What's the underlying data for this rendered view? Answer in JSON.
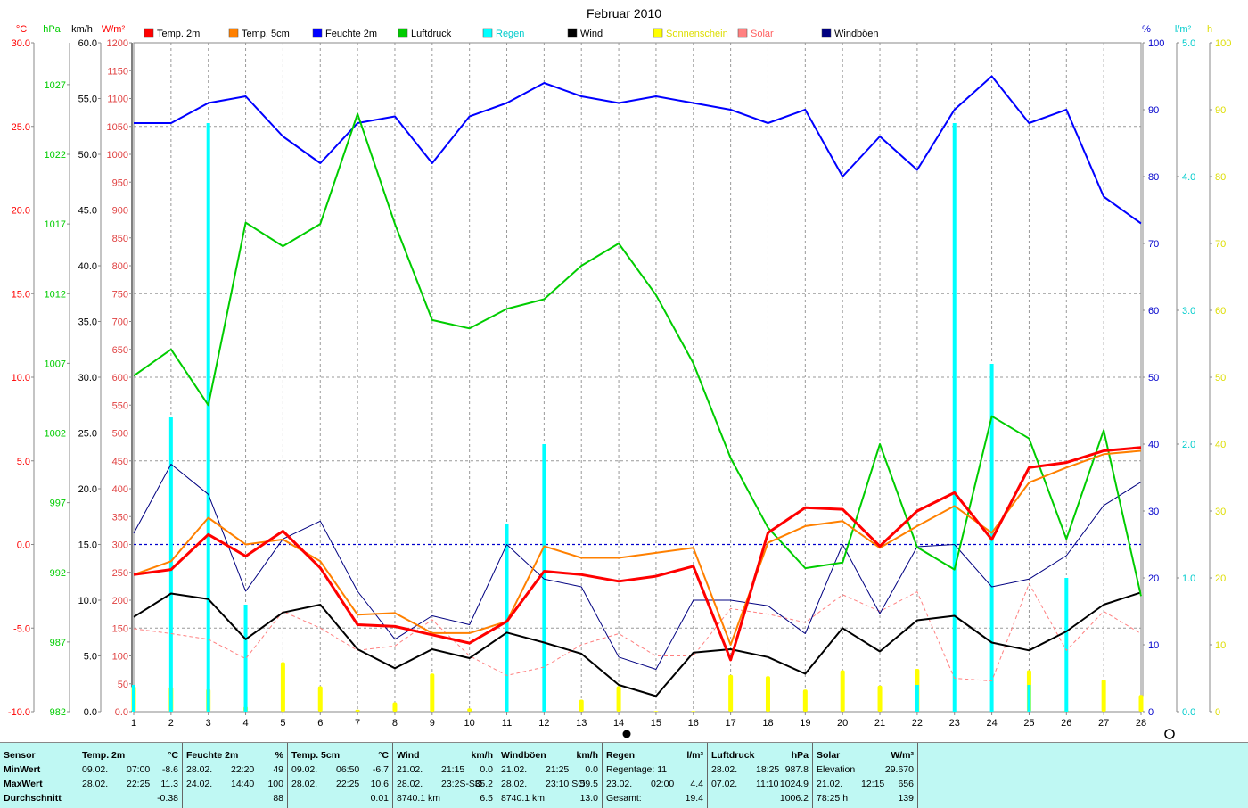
{
  "chart_data": {
    "type": "line",
    "title": "Februar 2010",
    "x": [
      1,
      2,
      3,
      4,
      5,
      6,
      7,
      8,
      9,
      10,
      11,
      12,
      13,
      14,
      15,
      16,
      17,
      18,
      19,
      20,
      21,
      22,
      23,
      24,
      25,
      26,
      27,
      28
    ],
    "left_axes": [
      {
        "unit": "°C",
        "color": "#ff0000",
        "ticks": [
          "30.0",
          "25.0",
          "20.0",
          "15.0",
          "10.0",
          "5.0",
          "0.0",
          "-5.0",
          "-10.0"
        ],
        "range": [
          -10,
          30
        ]
      },
      {
        "unit": "hPa",
        "color": "#00cc00",
        "ticks": [
          "1027",
          "1022",
          "1017",
          "1012",
          "1007",
          "1002",
          "997",
          "992",
          "987",
          "982"
        ],
        "range": [
          982,
          1030
        ]
      },
      {
        "unit": "km/h",
        "color": "#000000",
        "ticks": [
          "60.0",
          "55.0",
          "50.0",
          "45.0",
          "40.0",
          "35.0",
          "30.0",
          "25.0",
          "20.0",
          "15.0",
          "10.0",
          "5.0",
          "0.0"
        ],
        "range": [
          0,
          60
        ]
      },
      {
        "unit": "W/m²",
        "color": "#ff0000",
        "ticks": [
          "1200",
          "1150",
          "1100",
          "1050",
          "1000",
          "950",
          "900",
          "850",
          "800",
          "750",
          "700",
          "650",
          "600",
          "550",
          "500",
          "450",
          "400",
          "350",
          "300",
          "250",
          "200",
          "150",
          "100",
          "50",
          "0.0"
        ],
        "range": [
          0,
          1200
        ]
      }
    ],
    "right_axes": [
      {
        "unit": "%",
        "color": "#0000cc",
        "ticks": [
          "100",
          "90",
          "80",
          "70",
          "60",
          "50",
          "40",
          "30",
          "20",
          "10",
          "0"
        ],
        "range": [
          0,
          100
        ]
      },
      {
        "unit": "l/m²",
        "color": "#00cccc",
        "ticks": [
          "5.0",
          "4.0",
          "3.0",
          "2.0",
          "1.0",
          "0.0"
        ],
        "range": [
          0,
          5
        ]
      },
      {
        "unit": "h",
        "color": "#dddd00",
        "ticks": [
          "100",
          "90",
          "80",
          "70",
          "60",
          "50",
          "40",
          "30",
          "20",
          "10",
          "0"
        ],
        "range": [
          0,
          100
        ]
      }
    ],
    "legend": [
      {
        "name": "Temp. 2m",
        "color": "#ff0000"
      },
      {
        "name": "Temp. 5cm",
        "color": "#ff8000"
      },
      {
        "name": "Feuchte 2m",
        "color": "#0000ff"
      },
      {
        "name": "Luftdruck",
        "color": "#00cc00"
      },
      {
        "name": "Regen",
        "color": "#00ffff"
      },
      {
        "name": "Wind",
        "color": "#000000"
      },
      {
        "name": "Sonnenschein",
        "color": "#ffff00"
      },
      {
        "name": "Solar",
        "color": "#ff8080"
      },
      {
        "name": "Windböen",
        "color": "#000080"
      }
    ],
    "series": [
      {
        "name": "Feuchte 2m",
        "color": "#0000ff",
        "axis": "right0",
        "width": 2,
        "values": [
          88,
          88,
          91,
          92,
          86,
          82,
          88,
          89,
          82,
          89,
          91,
          94,
          92,
          91,
          92,
          91,
          90,
          88,
          90,
          80,
          86,
          81,
          90,
          95,
          88,
          90,
          77,
          73
        ]
      },
      {
        "name": "Luftdruck",
        "color": "#00cc00",
        "axis": "left1",
        "width": 2,
        "values": [
          1006.1,
          1008.0,
          1004.0,
          1017.1,
          1015.4,
          1017.0,
          1024.9,
          1017.0,
          1010.1,
          1009.5,
          1010.9,
          1011.6,
          1014.0,
          1015.6,
          1011.9,
          1007.0,
          1000.2,
          995.2,
          992.3,
          992.7,
          1001.2,
          993.8,
          992.2,
          1003.2,
          1001.6,
          994.4,
          1002.2,
          990.3
        ]
      },
      {
        "name": "Temp. 5cm",
        "color": "#ff8000",
        "axis": "left0",
        "width": 2,
        "values": [
          -1.8,
          -1.0,
          1.6,
          0.0,
          0.3,
          -1.0,
          -4.2,
          -4.1,
          -5.3,
          -5.3,
          -4.6,
          -0.1,
          -0.8,
          -0.8,
          -0.5,
          -0.2,
          -6.0,
          0.1,
          1.1,
          1.4,
          -0.2,
          1.1,
          2.3,
          0.7,
          3.7,
          4.6,
          5.4,
          5.6
        ]
      },
      {
        "name": "Temp. 2m",
        "color": "#ff0000",
        "axis": "left0",
        "width": 3,
        "values": [
          -1.8,
          -1.5,
          0.6,
          -0.7,
          0.8,
          -1.4,
          -4.8,
          -4.9,
          -5.4,
          -5.9,
          -4.6,
          -1.6,
          -1.8,
          -2.2,
          -1.9,
          -1.3,
          -6.9,
          0.7,
          2.2,
          2.1,
          -0.1,
          2.0,
          3.1,
          0.3,
          4.6,
          4.9,
          5.6,
          5.8
        ]
      },
      {
        "name": "Windböen",
        "color": "#000080",
        "axis": "left2",
        "width": 1,
        "values": [
          16.0,
          22.2,
          19.5,
          10.8,
          15.5,
          17.1,
          10.8,
          6.5,
          8.6,
          7.8,
          15.0,
          11.9,
          11.2,
          4.9,
          3.8,
          10.0,
          10.0,
          9.5,
          7.0,
          15.0,
          8.8,
          14.8,
          15.0,
          11.2,
          11.9,
          14.0,
          18.5,
          20.6
        ]
      },
      {
        "name": "Wind",
        "color": "#000000",
        "axis": "left2",
        "width": 2,
        "values": [
          8.5,
          10.6,
          10.1,
          6.5,
          8.9,
          9.6,
          5.6,
          3.9,
          5.6,
          4.8,
          7.1,
          6.2,
          5.2,
          2.4,
          1.4,
          5.3,
          5.6,
          4.9,
          3.4,
          7.5,
          5.4,
          8.2,
          8.6,
          6.2,
          5.5,
          7.2,
          9.6,
          10.7
        ]
      },
      {
        "name": "Solar",
        "color": "#ff8080",
        "axis": "left3",
        "width": 1,
        "dashed": true,
        "values": [
          149,
          140,
          130,
          95,
          180,
          150,
          110,
          118,
          165,
          100,
          65,
          80,
          120,
          140,
          100,
          100,
          185,
          175,
          160,
          210,
          180,
          215,
          60,
          55,
          230,
          110,
          180,
          140
        ]
      }
    ],
    "bars": [
      {
        "name": "Sonnenschein",
        "color": "#ffff00",
        "axis": "right2",
        "width": 5,
        "values": [
          3.8,
          3.7,
          3.4,
          0.8,
          7.4,
          3.8,
          0.3,
          1.4,
          5.7,
          0.5,
          0.1,
          0,
          1.8,
          3.8,
          0.1,
          0.1,
          5.5,
          5.3,
          3.3,
          6.2,
          3.9,
          6.4,
          0,
          0,
          6.2,
          0.2,
          4.8,
          2.5
        ]
      },
      {
        "name": "Regen",
        "color": "#00ffff",
        "axis": "right1",
        "width": 4,
        "values": [
          0.2,
          2.2,
          4.4,
          0.8,
          0,
          0,
          0,
          0,
          0,
          0,
          1.4,
          2.0,
          0,
          0,
          0,
          0,
          0,
          0,
          0,
          0,
          0,
          0.2,
          4.4,
          2.6,
          0.2,
          1.0,
          0,
          0
        ]
      }
    ],
    "zero_line_temp": 0.0
  },
  "stats": {
    "sensor": {
      "header": "Sensor",
      "rows": [
        "MinWert",
        "MaxWert",
        "Durchschnitt"
      ]
    },
    "temp2m": {
      "header": "Temp. 2m",
      "unit": "°C",
      "rows": [
        [
          "09.02.",
          "07:00",
          "-8.6"
        ],
        [
          "28.02.",
          "22:25",
          "11.3"
        ],
        [
          "",
          "",
          "-0.38"
        ]
      ]
    },
    "feuchte": {
      "header": "Feuchte 2m",
      "unit": "%",
      "rows": [
        [
          "28.02.",
          "22:20",
          "49"
        ],
        [
          "24.02.",
          "14:40",
          "100"
        ],
        [
          "",
          "",
          "88"
        ]
      ]
    },
    "temp5cm": {
      "header": "Temp. 5cm",
      "unit": "°C",
      "rows": [
        [
          "09.02.",
          "06:50",
          "-6.7"
        ],
        [
          "28.02.",
          "22:25",
          "10.6"
        ],
        [
          "",
          "",
          "0.01"
        ]
      ]
    },
    "wind": {
      "header": "Wind",
      "unit": "km/h",
      "rows": [
        [
          "21.02.",
          "21:15",
          "0.0"
        ],
        [
          "28.02.",
          "23:2S-SO",
          "35.2"
        ],
        [
          "8740.1 km",
          "",
          "6.5"
        ]
      ]
    },
    "boeen": {
      "header": "Windböen",
      "unit": "km/h",
      "rows": [
        [
          "21.02.",
          "21:25",
          "0.0"
        ],
        [
          "28.02.",
          "23:10 SO",
          "59.5"
        ],
        [
          "8740.1 km",
          "",
          "13.0"
        ]
      ]
    },
    "regen": {
      "header": "Regen",
      "unit": "l/m²",
      "rows": [
        [
          "Regentage: 11",
          "",
          ""
        ],
        [
          "23.02.",
          "02:00",
          "4.4"
        ],
        [
          "Gesamt:",
          "",
          "19.4"
        ]
      ]
    },
    "luftdruck": {
      "header": "Luftdruck",
      "unit": "hPa",
      "rows": [
        [
          "28.02.",
          "18:25",
          "987.8"
        ],
        [
          "07.02.",
          "11:10",
          "1024.9"
        ],
        [
          "",
          "",
          "1006.2"
        ]
      ]
    },
    "solar": {
      "header": "Solar",
      "unit": "W/m²",
      "rows": [
        [
          "Elevation",
          "",
          "29.670"
        ],
        [
          "21.02.",
          "12:15",
          "656"
        ],
        [
          "78:25 h",
          "",
          "139"
        ]
      ]
    }
  }
}
